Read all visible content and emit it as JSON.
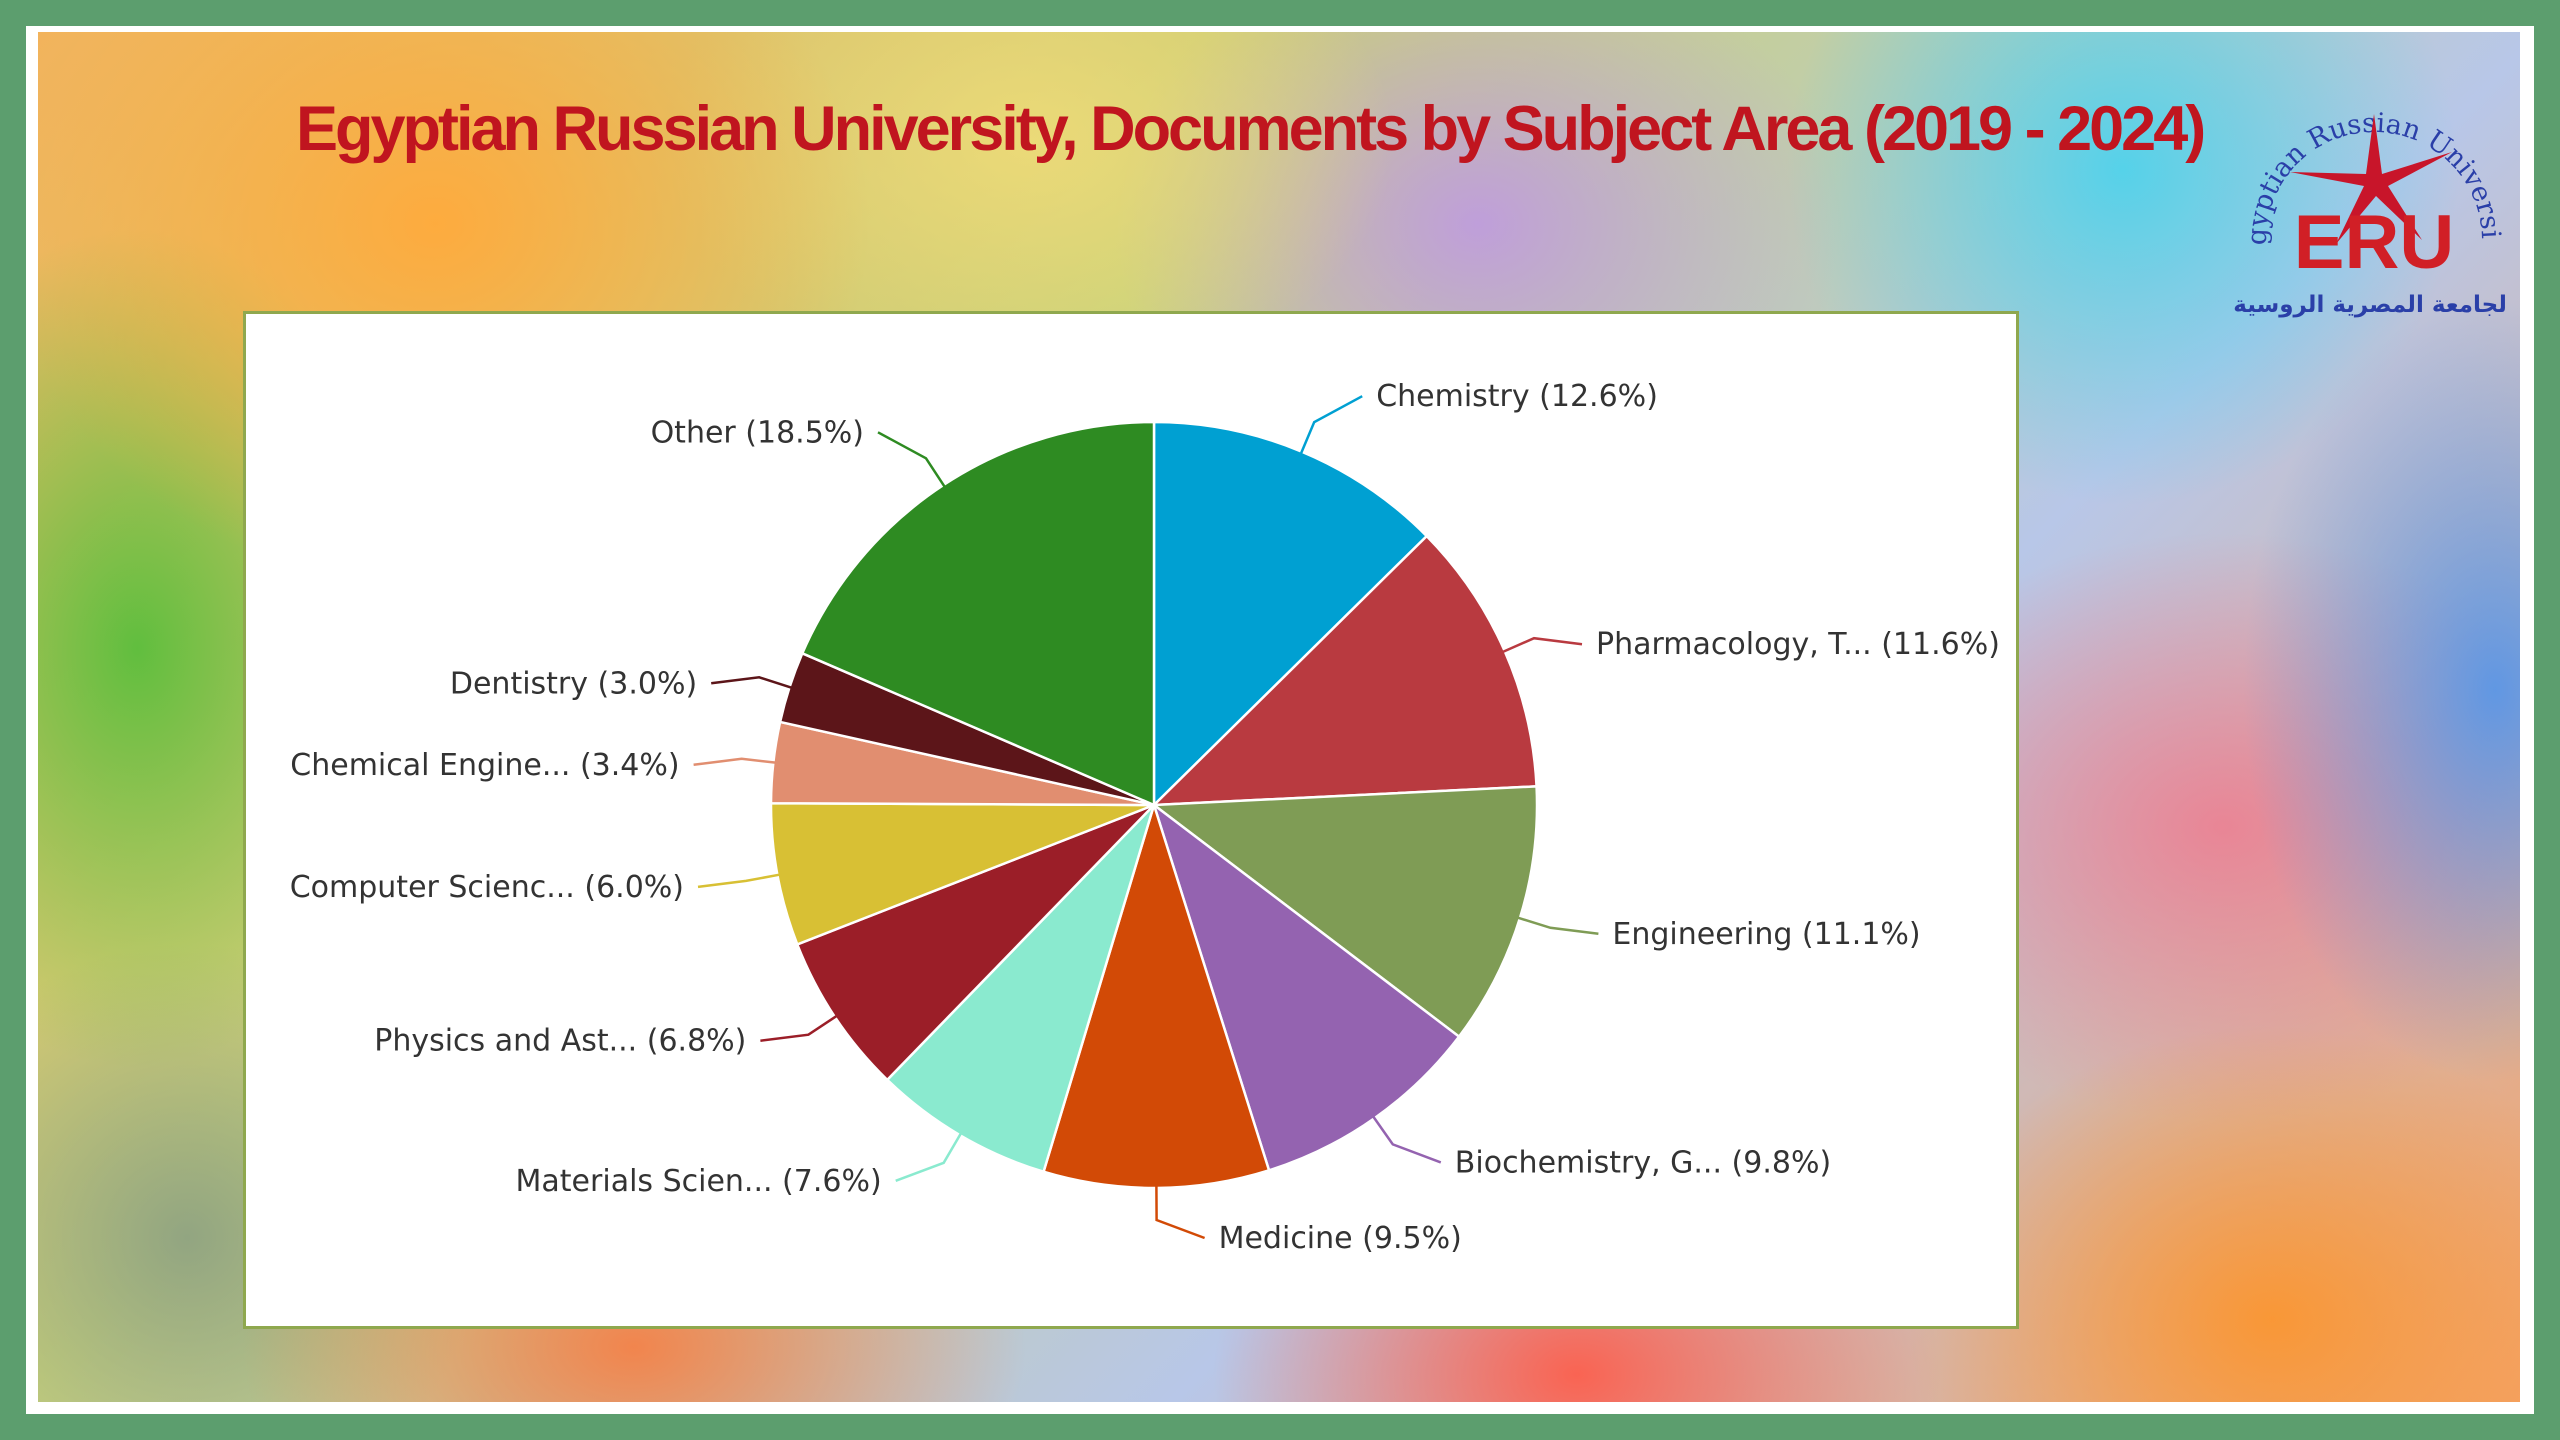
{
  "title": "Egyptian Russian University, Documents by Subject Area (2019 - 2024)",
  "logo": {
    "arc_text": "Egyptian Russian University",
    "letters": "ERU",
    "arabic_text": "الجامعة المصرية الروسية",
    "colors": {
      "star": "#c8152a",
      "arc": "#2a3fa8",
      "letters": "#d11f26"
    }
  },
  "chart_data": {
    "type": "pie",
    "title": "",
    "start": "top",
    "direction": "clockwise",
    "slices": [
      {
        "label": "Chemistry (12.6%)",
        "value": 12.6,
        "color": "#00a0d2"
      },
      {
        "label": "Pharmacology, T... (11.6%)",
        "value": 11.6,
        "color": "#b93a40"
      },
      {
        "label": "Engineering (11.1%)",
        "value": 11.1,
        "color": "#7f9c55"
      },
      {
        "label": "Biochemistry, G... (9.8%)",
        "value": 9.8,
        "color": "#9463b0"
      },
      {
        "label": "Medicine (9.5%)",
        "value": 9.5,
        "color": "#d24a06"
      },
      {
        "label": "Materials Scien... (7.6%)",
        "value": 7.6,
        "color": "#8aeacf"
      },
      {
        "label": "Physics and Ast... (6.8%)",
        "value": 6.8,
        "color": "#9b1e28"
      },
      {
        "label": "Computer Scienc... (6.0%)",
        "value": 6.0,
        "color": "#d8c034"
      },
      {
        "label": "Chemical Engine... (3.4%)",
        "value": 3.4,
        "color": "#e18e70"
      },
      {
        "label": "Dentistry (3.0%)",
        "value": 3.0,
        "color": "#5c1519"
      },
      {
        "label": "Other (18.5%)",
        "value": 18.5,
        "color": "#2e8b22"
      }
    ]
  }
}
